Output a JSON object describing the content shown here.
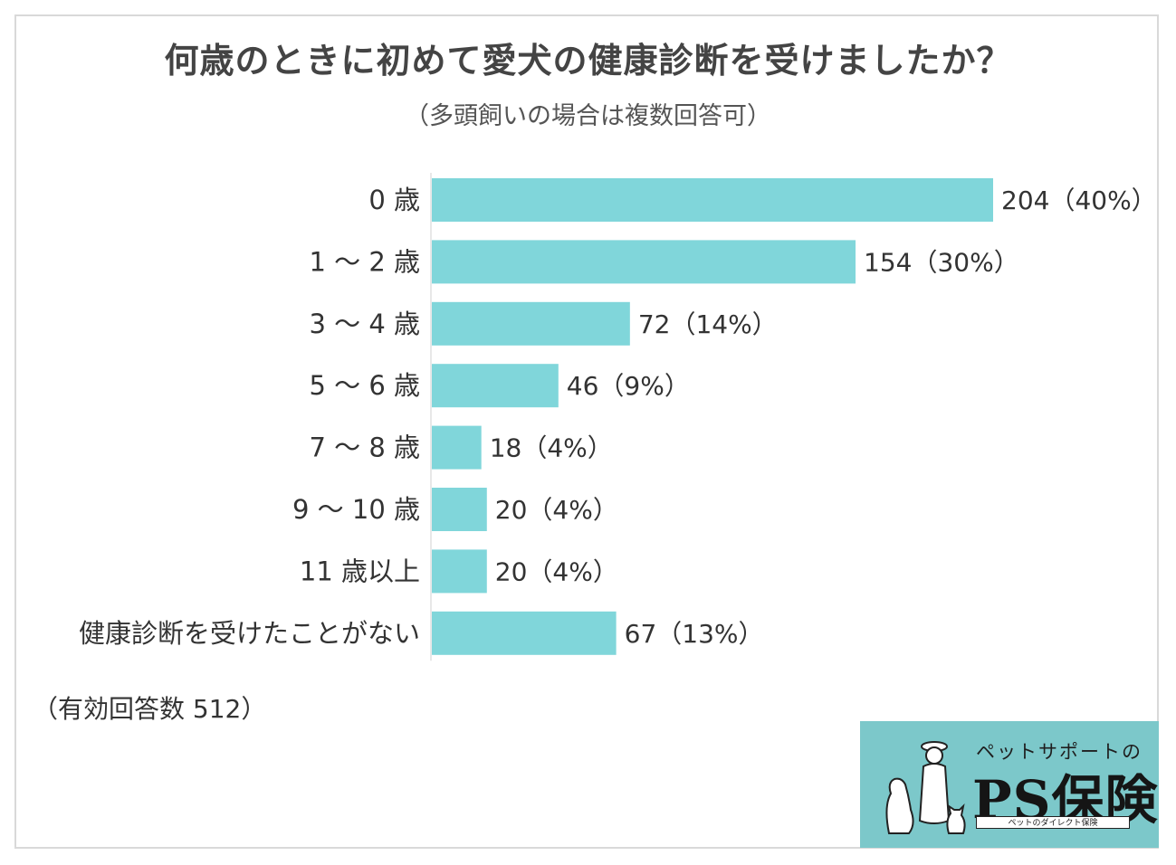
{
  "title": "何歳のときに初めて愛犬の健康診断を受けましたか？",
  "subtitle": "（多頭飼いの場合は複数回答可）",
  "note": "（有効回答数 512）",
  "colors": {
    "bar": "#80d6da",
    "axis": "#d0d0d0"
  },
  "logo": {
    "tagline": "ペットサポートの",
    "brand": "PS保険",
    "small": "ペットのダイレクト保険",
    "icon": "person-with-dog-and-cat-icon"
  },
  "chart_data": {
    "type": "bar",
    "orientation": "horizontal",
    "title": "何歳のときに初めて愛犬の健康診断を受けましたか？",
    "categories": [
      "0 歳",
      "1 ～ 2 歳",
      "3 ～ 4 歳",
      "5 ～ 6 歳",
      "7 ～ 8 歳",
      "9 ～ 10 歳",
      "11 歳以上",
      "健康診断を受けたことがない"
    ],
    "values": [
      204,
      154,
      72,
      46,
      18,
      20,
      20,
      67
    ],
    "data_labels": [
      "204（40%）",
      "154（30%）",
      "72（14%）",
      "46（9%）",
      "18（4%）",
      "20（4%）",
      "20（4%）",
      "67（13%）"
    ],
    "xlim": [
      0,
      204
    ],
    "grid": false,
    "legend": "none"
  }
}
